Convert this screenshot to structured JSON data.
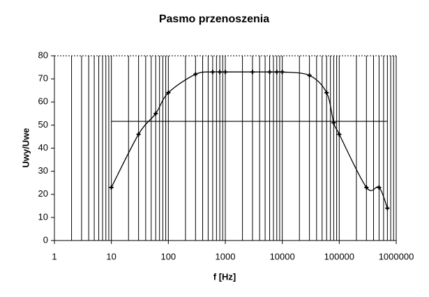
{
  "chart_data": {
    "type": "line",
    "title": "Pasmo przenoszenia",
    "x_label": "f [Hz]",
    "y_label": "Uwy/Uwe",
    "x_scale": "log",
    "xlim": [
      1,
      1000000
    ],
    "xticks": [
      1,
      10,
      100,
      1000,
      10000,
      100000,
      1000000
    ],
    "x_grid": [
      2,
      3,
      4,
      5,
      6,
      7,
      8,
      9,
      10,
      20,
      30,
      40,
      50,
      60,
      70,
      80,
      90,
      100,
      200,
      300,
      400,
      500,
      600,
      700,
      800,
      900,
      1000,
      2000,
      3000,
      4000,
      5000,
      6000,
      7000,
      8000,
      9000,
      10000,
      20000,
      30000,
      40000,
      50000,
      60000,
      70000,
      80000,
      90000,
      100000,
      200000,
      300000,
      400000,
      500000,
      600000,
      700000,
      800000,
      900000,
      1000000
    ],
    "ylim": [
      0,
      80
    ],
    "yticks": [
      0,
      10,
      20,
      30,
      40,
      50,
      60,
      70,
      80
    ],
    "color": "#000000",
    "x": [
      10,
      30,
      60,
      100,
      300,
      600,
      800,
      1000,
      3000,
      6000,
      8000,
      10000,
      30000,
      60000,
      80000,
      100000,
      300000,
      500000,
      700000
    ],
    "values": [
      23,
      46,
      55,
      64,
      72,
      73,
      73,
      73,
      73,
      73,
      73,
      73,
      71.5,
      64,
      51,
      46,
      23,
      23,
      14
    ],
    "reference_line": {
      "value": 51.6,
      "x": [
        10,
        700000
      ]
    }
  }
}
